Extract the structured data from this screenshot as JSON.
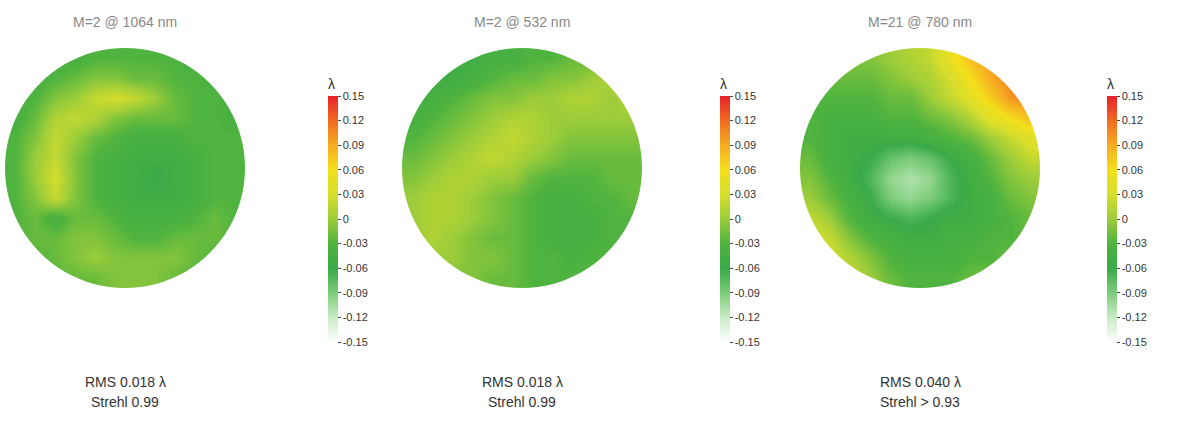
{
  "chart_data": [
    {
      "type": "heatmap",
      "title": "M=2 @ 1064 nm",
      "colorbar_title": "λ",
      "colorbar_range": [
        -0.15,
        0.15
      ],
      "colorbar_ticks": [
        0.15,
        0.12,
        0.09,
        0.06,
        0.03,
        0,
        -0.03,
        -0.06,
        -0.09,
        -0.12,
        -0.15
      ],
      "annotations": [
        "RMS 0.018 λ",
        "Strehl 0.99"
      ],
      "cells": [
        [
          null,
          null,
          -0.04,
          -0.04,
          -0.03,
          -0.03,
          -0.03,
          -0.03,
          -0.03,
          -0.04,
          null,
          null
        ],
        [
          null,
          -0.04,
          -0.03,
          -0.02,
          -0.01,
          -0.01,
          -0.02,
          -0.02,
          -0.03,
          -0.03,
          -0.04,
          null
        ],
        [
          -0.04,
          -0.03,
          -0.01,
          0.0,
          0.02,
          0.03,
          0.02,
          0.0,
          -0.02,
          -0.03,
          -0.03,
          -0.04
        ],
        [
          -0.04,
          -0.02,
          0.01,
          0.02,
          0.01,
          -0.01,
          -0.02,
          -0.02,
          -0.02,
          -0.03,
          -0.03,
          -0.04
        ],
        [
          -0.03,
          -0.01,
          0.02,
          0.0,
          -0.02,
          -0.03,
          -0.04,
          -0.04,
          -0.04,
          -0.03,
          -0.03,
          -0.03
        ],
        [
          -0.03,
          0.0,
          0.02,
          -0.01,
          -0.03,
          -0.04,
          -0.05,
          -0.05,
          -0.05,
          -0.04,
          -0.03,
          -0.03
        ],
        [
          -0.03,
          0.0,
          0.03,
          -0.01,
          -0.03,
          -0.04,
          -0.05,
          -0.06,
          -0.05,
          -0.04,
          -0.03,
          -0.03
        ],
        [
          -0.03,
          -0.01,
          0.02,
          -0.01,
          -0.03,
          -0.04,
          -0.05,
          -0.05,
          -0.05,
          -0.04,
          -0.03,
          -0.03
        ],
        [
          -0.03,
          -0.02,
          -0.04,
          -0.02,
          -0.02,
          -0.03,
          -0.04,
          -0.04,
          -0.04,
          -0.03,
          -0.02,
          -0.03
        ],
        [
          -0.03,
          -0.02,
          -0.02,
          -0.01,
          -0.01,
          -0.02,
          -0.03,
          -0.03,
          -0.02,
          -0.02,
          -0.02,
          -0.03
        ],
        [
          null,
          -0.03,
          -0.02,
          -0.01,
          0.0,
          -0.01,
          -0.01,
          -0.01,
          -0.01,
          -0.02,
          -0.03,
          null
        ],
        [
          null,
          null,
          -0.03,
          -0.02,
          -0.02,
          -0.01,
          -0.01,
          -0.01,
          -0.02,
          -0.03,
          null,
          null
        ]
      ]
    },
    {
      "type": "heatmap",
      "title": "M=2 @ 532 nm",
      "colorbar_title": "λ",
      "colorbar_range": [
        -0.15,
        0.15
      ],
      "colorbar_ticks": [
        0.15,
        0.12,
        0.09,
        0.06,
        0.03,
        0,
        -0.03,
        -0.06,
        -0.09,
        -0.12,
        -0.15
      ],
      "annotations": [
        "RMS 0.018 λ",
        "Strehl 0.99"
      ],
      "cells": [
        [
          null,
          null,
          -0.05,
          -0.05,
          -0.04,
          -0.04,
          -0.03,
          -0.03,
          -0.02,
          -0.02,
          null,
          null
        ],
        [
          null,
          -0.05,
          -0.05,
          -0.04,
          -0.03,
          -0.02,
          -0.02,
          -0.01,
          -0.01,
          0.0,
          0.01,
          null
        ],
        [
          -0.05,
          -0.04,
          -0.03,
          -0.02,
          -0.01,
          -0.01,
          0.0,
          0.0,
          0.01,
          0.01,
          0.0,
          0.01
        ],
        [
          -0.04,
          -0.03,
          -0.02,
          -0.01,
          0.0,
          0.01,
          0.01,
          0.0,
          0.0,
          0.0,
          0.0,
          0.0
        ],
        [
          -0.03,
          -0.02,
          -0.01,
          0.0,
          0.01,
          0.02,
          0.01,
          0.0,
          -0.01,
          -0.01,
          -0.01,
          -0.01
        ],
        [
          -0.02,
          -0.01,
          0.0,
          0.01,
          0.02,
          0.01,
          0.0,
          -0.01,
          -0.02,
          -0.02,
          -0.02,
          -0.02
        ],
        [
          -0.01,
          0.0,
          0.01,
          0.01,
          0.0,
          0.0,
          -0.02,
          -0.03,
          -0.03,
          -0.03,
          -0.02,
          -0.02
        ],
        [
          0.0,
          0.01,
          0.01,
          0.0,
          -0.01,
          -0.02,
          -0.03,
          -0.04,
          -0.04,
          -0.03,
          -0.03,
          -0.02
        ],
        [
          0.0,
          0.01,
          0.01,
          0.0,
          -0.01,
          -0.02,
          -0.03,
          -0.04,
          -0.04,
          -0.04,
          -0.03,
          -0.03
        ],
        [
          0.0,
          0.01,
          0.0,
          -0.01,
          -0.02,
          -0.02,
          -0.03,
          -0.04,
          -0.04,
          -0.04,
          -0.03,
          -0.03
        ],
        [
          null,
          0.0,
          0.0,
          -0.01,
          -0.01,
          -0.02,
          -0.03,
          -0.03,
          -0.04,
          -0.03,
          -0.03,
          null
        ],
        [
          null,
          null,
          -0.01,
          -0.01,
          -0.02,
          -0.02,
          -0.03,
          -0.03,
          -0.03,
          -0.03,
          null,
          null
        ]
      ]
    },
    {
      "type": "heatmap",
      "title": "M=21 @ 780 nm",
      "colorbar_title": "λ",
      "colorbar_range": [
        -0.15,
        0.15
      ],
      "colorbar_ticks": [
        0.15,
        0.12,
        0.09,
        0.06,
        0.03,
        0,
        -0.03,
        -0.06,
        -0.09,
        -0.12,
        -0.15
      ],
      "annotations": [
        "RMS 0.040 λ",
        "Strehl > 0.93"
      ],
      "cells": [
        [
          null,
          null,
          -0.01,
          -0.01,
          0.0,
          0.01,
          0.02,
          0.05,
          0.08,
          0.1,
          null,
          null
        ],
        [
          null,
          -0.02,
          -0.02,
          -0.02,
          -0.01,
          0.0,
          0.01,
          0.03,
          0.06,
          0.09,
          0.11,
          null
        ],
        [
          -0.03,
          -0.03,
          -0.03,
          -0.03,
          -0.02,
          -0.02,
          0.0,
          0.02,
          0.04,
          0.07,
          0.1,
          0.11
        ],
        [
          -0.03,
          -0.04,
          -0.04,
          -0.04,
          -0.03,
          -0.03,
          -0.02,
          -0.01,
          0.01,
          0.04,
          0.06,
          0.08
        ],
        [
          -0.03,
          -0.04,
          -0.05,
          -0.05,
          -0.05,
          -0.05,
          -0.04,
          -0.03,
          -0.02,
          0.0,
          0.02,
          0.04
        ],
        [
          -0.02,
          -0.04,
          -0.05,
          -0.06,
          -0.08,
          -0.09,
          -0.08,
          -0.06,
          -0.04,
          -0.02,
          0.0,
          0.02
        ],
        [
          -0.01,
          -0.03,
          -0.05,
          -0.07,
          -0.1,
          -0.11,
          -0.1,
          -0.07,
          -0.05,
          -0.03,
          -0.01,
          0.0
        ],
        [
          0.0,
          -0.02,
          -0.04,
          -0.06,
          -0.09,
          -0.1,
          -0.09,
          -0.07,
          -0.05,
          -0.04,
          -0.02,
          -0.01
        ],
        [
          0.02,
          0.0,
          -0.03,
          -0.05,
          -0.06,
          -0.07,
          -0.06,
          -0.05,
          -0.05,
          -0.04,
          -0.03,
          -0.02
        ],
        [
          0.03,
          0.02,
          -0.01,
          -0.03,
          -0.04,
          -0.05,
          -0.05,
          -0.04,
          -0.04,
          -0.03,
          -0.03,
          -0.02
        ],
        [
          null,
          0.03,
          0.01,
          -0.01,
          -0.03,
          -0.04,
          -0.04,
          -0.04,
          -0.03,
          -0.03,
          -0.02,
          null
        ],
        [
          null,
          null,
          0.02,
          0.0,
          -0.02,
          -0.03,
          -0.03,
          -0.03,
          -0.02,
          -0.02,
          null,
          null
        ]
      ]
    }
  ]
}
